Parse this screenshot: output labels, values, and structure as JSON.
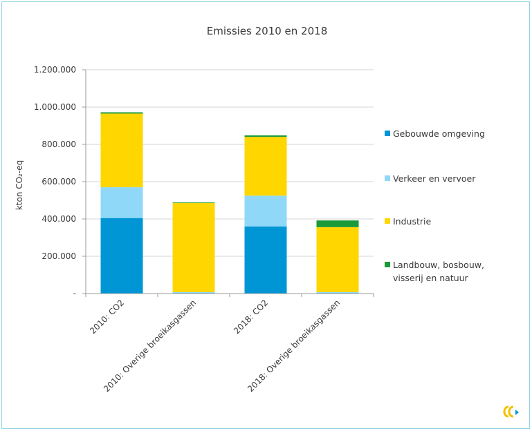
{
  "chart_data": {
    "type": "bar",
    "stacked": true,
    "title": "Emissies 2010 en 2018",
    "ylabel": "kton CO₂-eq",
    "xlabel": "",
    "ylim": [
      0,
      1200000
    ],
    "yticks": [
      0,
      200000,
      400000,
      600000,
      800000,
      1000000,
      1200000
    ],
    "ytick_labels": [
      "-",
      "200.000",
      "400.000",
      "600.000",
      "800.000",
      "1.000.000",
      "1.200.000"
    ],
    "grid": true,
    "legend_position": "right",
    "categories": [
      "2010: CO2",
      "2010: Overige broeikasgassen",
      "2018: CO2",
      "2018: Overige broeikasgassen"
    ],
    "series": [
      {
        "name": "Gebouwde omgeving",
        "color": "#0096d6",
        "values": [
          405000,
          3000,
          360000,
          3000
        ]
      },
      {
        "name": "Verkeer en vervoer",
        "color": "#8fd8f8",
        "values": [
          165000,
          5000,
          165000,
          5000
        ]
      },
      {
        "name": "Industrie",
        "color": "#ffd600",
        "values": [
          395000,
          478000,
          315000,
          348000
        ]
      },
      {
        "name": "Landbouw, bosbouw, visserij en natuur",
        "legend_lines": [
          "Landbouw, bosbouw,",
          "visserij en natuur"
        ],
        "color": "#1a9a3a",
        "values": [
          7000,
          3000,
          8000,
          36000
        ]
      }
    ]
  }
}
